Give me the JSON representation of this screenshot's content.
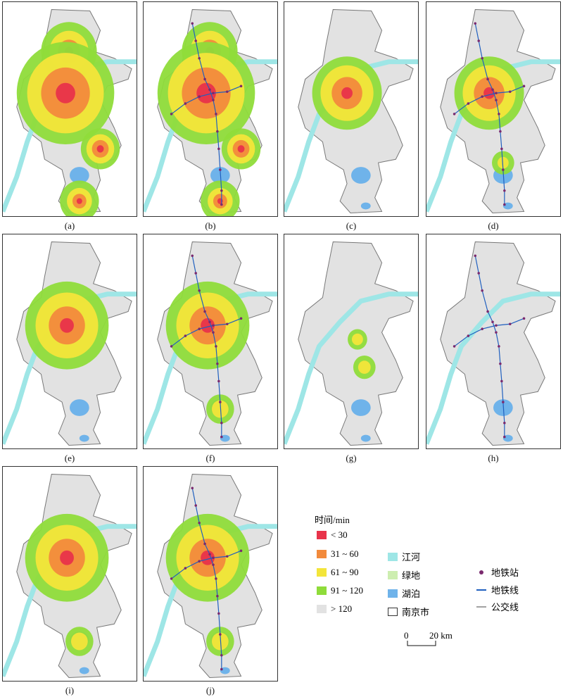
{
  "panels": [
    {
      "label": "(a)",
      "level": "full"
    },
    {
      "label": "(b)",
      "level": "full-metro"
    },
    {
      "label": "(c)",
      "level": "core"
    },
    {
      "label": "(d)",
      "level": "core-metro"
    },
    {
      "label": "(e)",
      "level": "mid"
    },
    {
      "label": "(f)",
      "level": "mid-metro"
    },
    {
      "label": "(g)",
      "level": "south-small"
    },
    {
      "label": "(h)",
      "level": "metro-only"
    },
    {
      "label": "(i)",
      "level": "mid-dense"
    },
    {
      "label": "(j)",
      "level": "mid-metro"
    }
  ],
  "legend": {
    "title": "时间/min",
    "time_classes": [
      {
        "label": "< 30",
        "color": "#e8334a"
      },
      {
        "label": "31 ~ 60",
        "color": "#f28a3c"
      },
      {
        "label": "61 ~ 90",
        "color": "#f3e53a"
      },
      {
        "label": "91 ~ 120",
        "color": "#8fdc3a"
      },
      {
        "label": "> 120",
        "color": "#e2e2e2"
      }
    ],
    "features": [
      {
        "label": "江河",
        "color": "#9ee6e6",
        "icon": "river-swatch"
      },
      {
        "label": "绿地",
        "color": "#cdeeb0",
        "icon": "greenland-swatch"
      },
      {
        "label": "湖泊",
        "color": "#6fb3ea",
        "icon": "lake-swatch"
      },
      {
        "label": "南京市",
        "color": "#ffffff",
        "icon": "boundary-swatch"
      }
    ],
    "transit": [
      {
        "label": "地铁站",
        "color": "#7a2a6e",
        "icon": "metro-station-icon"
      },
      {
        "label": "地铁线",
        "color": "#1f5fbf",
        "icon": "metro-line-icon"
      },
      {
        "label": "公交线",
        "color": "#444444",
        "icon": "bus-line-icon"
      }
    ]
  },
  "scale_bar": {
    "zero": "0",
    "label": "20 km"
  }
}
